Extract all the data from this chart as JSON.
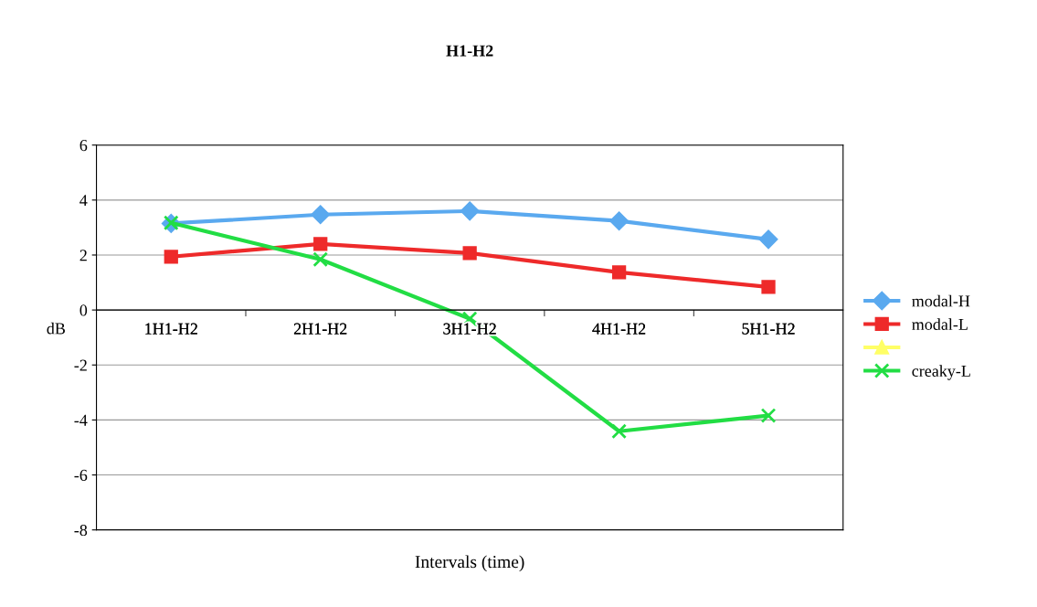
{
  "chart_data": {
    "type": "line",
    "title": "H1-H2",
    "xlabel": "Intervals (time)",
    "ylabel": "dB",
    "categories": [
      "1H1-H2",
      "2H1-H2",
      "3H1-H2",
      "4H1-H2",
      "5H1-H2"
    ],
    "series": [
      {
        "name": "modal-H",
        "color": "#5aa9ef",
        "marker": "diamond",
        "values": [
          3.15,
          3.47,
          3.6,
          3.24,
          2.57
        ]
      },
      {
        "name": "modal-L",
        "color": "#ee2a2a",
        "marker": "square",
        "values": [
          1.94,
          2.4,
          2.07,
          1.37,
          0.84
        ]
      },
      {
        "color": "#ffff66",
        "marker": "triangle",
        "values": [
          null,
          null,
          null,
          null,
          null
        ]
      },
      {
        "name": "creaky-L",
        "color": "#22dd44",
        "marker": "cross",
        "values": [
          3.17,
          1.84,
          -0.32,
          -4.41,
          -3.84
        ]
      }
    ],
    "ylim": [
      -8,
      6
    ],
    "yticks": [
      -8,
      -6,
      -4,
      -2,
      0,
      2,
      4,
      6
    ],
    "grid": "y",
    "legend": "right"
  }
}
